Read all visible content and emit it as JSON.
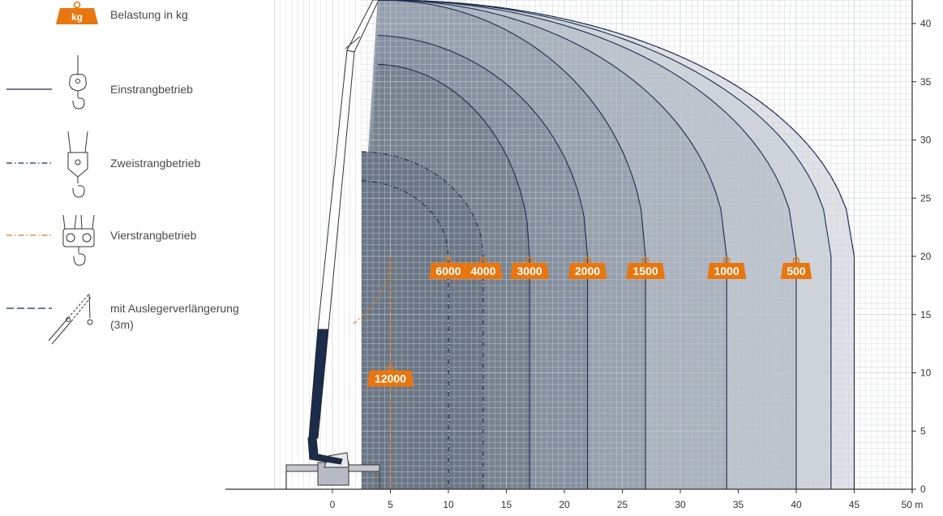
{
  "legend": {
    "kg_badge": "kg",
    "load_label": "Belastung in kg",
    "single": "Einstrangbetrieb",
    "double": "Zweistrangbetrieb",
    "quad": "Vierstrangbetrieb",
    "extension_1": "mit Auslegerverlängerung",
    "extension_2": "(3m)"
  },
  "colors": {
    "accent": "#e8760f",
    "navy": "#1c2c4c",
    "grid": "#c9ced6",
    "zone_dark": "#6c7a8e",
    "zone_light": "#e4e6ea"
  },
  "chart_data": {
    "type": "area",
    "title": "",
    "xlabel": "m",
    "ylabel": "",
    "xlim": [
      -5,
      50
    ],
    "ylim": [
      0,
      42
    ],
    "x_ticks": [
      0,
      5,
      10,
      15,
      20,
      25,
      30,
      35,
      40,
      45,
      50
    ],
    "y_ticks": [
      0,
      5,
      10,
      15,
      20,
      25,
      30,
      35,
      40
    ],
    "x_unit": "m",
    "grid": true,
    "load_curves": [
      {
        "label": "12000",
        "style": "four-fall",
        "x_end": 5,
        "radius": 10.4,
        "start_height": 12.0
      },
      {
        "label": "6000",
        "style": "two-fall",
        "x_end": 10,
        "radius": 7.8,
        "start_height": 26.5
      },
      {
        "label": "4000",
        "style": "two-fall",
        "x_end": 13,
        "radius": 10.8,
        "start_height": 29.0
      },
      {
        "label": "3000",
        "style": "single",
        "x_end": 17,
        "radius": 13.4,
        "start_height": 36.5
      },
      {
        "label": "2000",
        "style": "single",
        "x_end": 22,
        "radius": 18.8,
        "start_height": 39.0
      },
      {
        "label": "1500",
        "style": "single",
        "x_end": 27,
        "radius": 22.6,
        "start_height": 42.0
      },
      {
        "label": "1000",
        "style": "single",
        "x_end": 34,
        "radius": 29.4,
        "start_height": 42.0
      },
      {
        "label": "500",
        "style": "single",
        "x_end": 40,
        "radius": 35.2,
        "start_height": 42.0
      },
      {
        "label": "",
        "style": "single",
        "x_end": 43,
        "radius": 38.0,
        "start_height": 42.0
      },
      {
        "label": "",
        "style": "single",
        "x_end": 45,
        "radius": 40.0,
        "start_height": 42.0
      },
      {
        "label": "",
        "style": "extension",
        "x_end": 45,
        "radius": 40.0,
        "start_height": 42.0
      }
    ]
  }
}
